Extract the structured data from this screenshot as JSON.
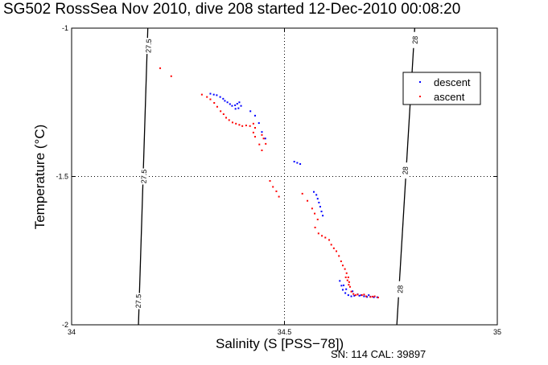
{
  "chart_data": {
    "type": "scatter",
    "title": "SG502 RossSea Nov 2010, dive 208 started 12-Dec-2010 00:08:20",
    "xlabel": "Salinity (S [PSS−78])",
    "ylabel": "Temperature (°C)",
    "xlim": [
      34,
      35
    ],
    "ylim": [
      -2,
      -1
    ],
    "x_ticks": [
      "34",
      "34.5",
      "35"
    ],
    "y_ticks": [
      "-1",
      "-1.5",
      "-2"
    ],
    "grid": true,
    "legend_position": "top-right",
    "footer": "SN: 114  CAL: 39897",
    "isopycnals": [
      {
        "label": "27.5",
        "line": [
          [
            34.179,
            -1.0
          ],
          [
            34.157,
            -2.0
          ]
        ],
        "label_points": [
          [
            34.181,
            -1.06
          ],
          [
            34.17,
            -1.5
          ],
          [
            34.157,
            -1.92
          ]
        ]
      },
      {
        "label": "28",
        "line": [
          [
            34.806,
            -1.0
          ],
          [
            34.764,
            -2.0
          ]
        ],
        "label_points": [
          [
            34.807,
            -1.04
          ],
          [
            34.784,
            -1.48
          ],
          [
            34.772,
            -1.88
          ]
        ]
      }
    ],
    "series": [
      {
        "name": "descent",
        "color": "#0000ff",
        "points": [
          [
            34.326,
            -1.221
          ],
          [
            34.334,
            -1.224
          ],
          [
            34.341,
            -1.226
          ],
          [
            34.349,
            -1.232
          ],
          [
            34.356,
            -1.238
          ],
          [
            34.36,
            -1.245
          ],
          [
            34.366,
            -1.25
          ],
          [
            34.372,
            -1.256
          ],
          [
            34.377,
            -1.262
          ],
          [
            34.384,
            -1.26
          ],
          [
            34.389,
            -1.255
          ],
          [
            34.394,
            -1.25
          ],
          [
            34.398,
            -1.262
          ],
          [
            34.392,
            -1.27
          ],
          [
            34.385,
            -1.272
          ],
          [
            34.42,
            -1.28
          ],
          [
            34.431,
            -1.295
          ],
          [
            34.44,
            -1.32
          ],
          [
            34.447,
            -1.35
          ],
          [
            34.455,
            -1.372
          ],
          [
            34.523,
            -1.45
          ],
          [
            34.53,
            -1.454
          ],
          [
            34.537,
            -1.458
          ],
          [
            34.569,
            -1.552
          ],
          [
            34.575,
            -1.562
          ],
          [
            34.578,
            -1.575
          ],
          [
            34.581,
            -1.588
          ],
          [
            34.584,
            -1.602
          ],
          [
            34.587,
            -1.618
          ],
          [
            34.59,
            -1.632
          ],
          [
            34.63,
            -1.852
          ],
          [
            34.634,
            -1.868
          ],
          [
            34.637,
            -1.882
          ],
          [
            34.643,
            -1.893
          ],
          [
            34.65,
            -1.9
          ],
          [
            34.657,
            -1.904
          ],
          [
            34.664,
            -1.902
          ],
          [
            34.672,
            -1.897
          ],
          [
            34.68,
            -1.9
          ],
          [
            34.687,
            -1.904
          ],
          [
            34.694,
            -1.906
          ],
          [
            34.702,
            -1.905
          ],
          [
            34.71,
            -1.907
          ],
          [
            34.718,
            -1.907
          ],
          [
            34.645,
            -1.88
          ],
          [
            34.66,
            -1.887
          ],
          [
            34.639,
            -1.867
          ],
          [
            34.676,
            -1.902
          ],
          [
            34.698,
            -1.9
          ]
        ]
      },
      {
        "name": "ascent",
        "color": "#ff0000",
        "points": [
          [
            34.208,
            -1.135
          ],
          [
            34.234,
            -1.162
          ],
          [
            34.306,
            -1.224
          ],
          [
            34.318,
            -1.232
          ],
          [
            34.326,
            -1.24
          ],
          [
            34.335,
            -1.252
          ],
          [
            34.342,
            -1.265
          ],
          [
            34.35,
            -1.28
          ],
          [
            34.357,
            -1.29
          ],
          [
            34.363,
            -1.302
          ],
          [
            34.37,
            -1.31
          ],
          [
            34.378,
            -1.318
          ],
          [
            34.386,
            -1.322
          ],
          [
            34.394,
            -1.326
          ],
          [
            34.401,
            -1.33
          ],
          [
            34.41,
            -1.328
          ],
          [
            34.419,
            -1.33
          ],
          [
            34.427,
            -1.322
          ],
          [
            34.431,
            -1.336
          ],
          [
            34.427,
            -1.352
          ],
          [
            34.431,
            -1.366
          ],
          [
            34.447,
            -1.36
          ],
          [
            34.451,
            -1.372
          ],
          [
            34.441,
            -1.392
          ],
          [
            34.447,
            -1.412
          ],
          [
            34.456,
            -1.39
          ],
          [
            34.466,
            -1.515
          ],
          [
            34.473,
            -1.535
          ],
          [
            34.481,
            -1.55
          ],
          [
            34.487,
            -1.568
          ],
          [
            34.542,
            -1.558
          ],
          [
            34.554,
            -1.582
          ],
          [
            34.565,
            -1.608
          ],
          [
            34.571,
            -1.625
          ],
          [
            34.578,
            -1.645
          ],
          [
            34.572,
            -1.672
          ],
          [
            34.58,
            -1.692
          ],
          [
            34.588,
            -1.7
          ],
          [
            34.596,
            -1.706
          ],
          [
            34.605,
            -1.714
          ],
          [
            34.61,
            -1.73
          ],
          [
            34.616,
            -1.742
          ],
          [
            34.622,
            -1.752
          ],
          [
            34.628,
            -1.768
          ],
          [
            34.633,
            -1.786
          ],
          [
            34.637,
            -1.8
          ],
          [
            34.642,
            -1.812
          ],
          [
            34.646,
            -1.826
          ],
          [
            34.65,
            -1.84
          ],
          [
            34.652,
            -1.856
          ],
          [
            34.654,
            -1.872
          ],
          [
            34.657,
            -1.888
          ],
          [
            34.662,
            -1.896
          ],
          [
            34.672,
            -1.898
          ],
          [
            34.682,
            -1.9
          ],
          [
            34.692,
            -1.904
          ],
          [
            34.702,
            -1.906
          ],
          [
            34.712,
            -1.904
          ],
          [
            34.72,
            -1.908
          ],
          [
            34.648,
            -1.85
          ],
          [
            34.644,
            -1.84
          ],
          [
            34.651,
            -1.865
          ],
          [
            34.667,
            -1.9
          ],
          [
            34.687,
            -1.898
          ],
          [
            34.707,
            -1.905
          ]
        ]
      }
    ]
  }
}
